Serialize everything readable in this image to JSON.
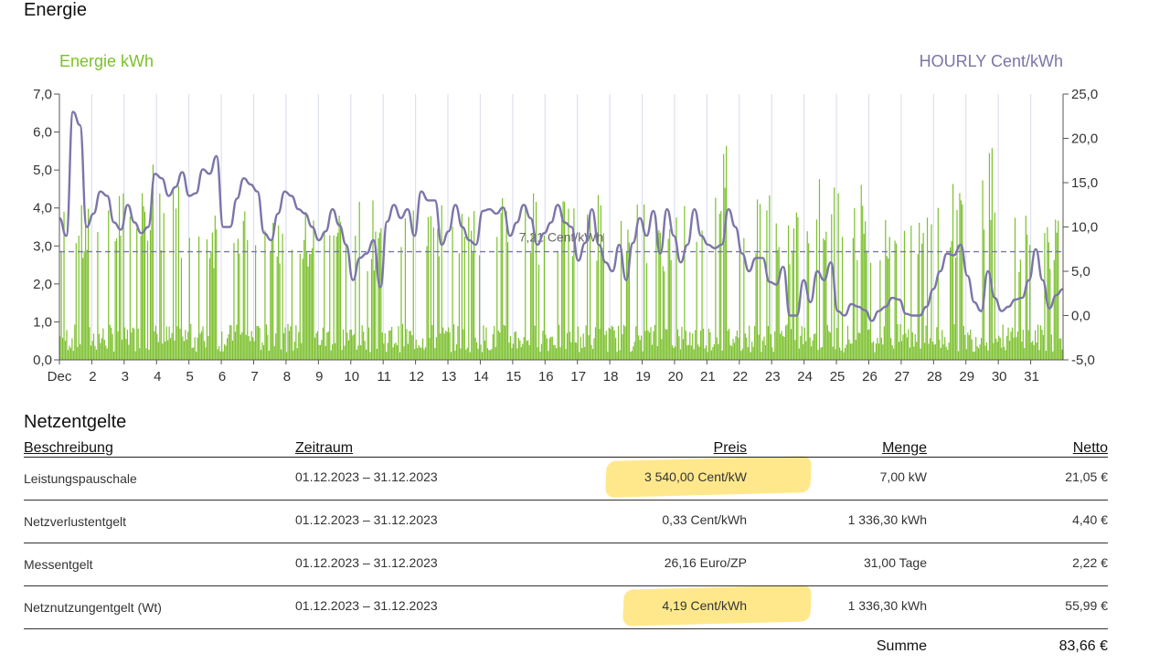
{
  "energy": {
    "title": "Energie",
    "left_legend": "Energie kWh",
    "right_legend": "HOURLY Cent/kWh",
    "average_label": "7,21 Cent/kWh"
  },
  "chart_data": {
    "type": "bar",
    "title": "Energie",
    "x_tick_labels": [
      "Dec",
      "2",
      "3",
      "4",
      "5",
      "6",
      "7",
      "8",
      "9",
      "10",
      "11",
      "12",
      "13",
      "14",
      "15",
      "16",
      "17",
      "18",
      "19",
      "20",
      "21",
      "22",
      "23",
      "24",
      "25",
      "26",
      "27",
      "28",
      "29",
      "30",
      "31"
    ],
    "y_left": {
      "label": "Energie kWh",
      "lim": [
        0,
        7
      ],
      "ticks": [
        "0,0",
        "1,0",
        "2,0",
        "3,0",
        "4,0",
        "5,0",
        "6,0",
        "7,0"
      ]
    },
    "y_right": {
      "label": "HOURLY Cent/kWh",
      "lim": [
        -5,
        25
      ],
      "ticks": [
        "-5,0",
        "0,0",
        "5,0",
        "10,0",
        "15,0",
        "20,0",
        "25,0"
      ]
    },
    "average": {
      "value": 7.21,
      "label": "7,21 Cent/kWh"
    },
    "series": [
      {
        "name": "Energie kWh",
        "type": "bar",
        "axis": "left",
        "color": "#7cc02d",
        "sampling": "hourly estimate",
        "daily_peak_kwh": [
          4.1,
          4.4,
          5.7,
          4.6,
          4.3,
          4.5,
          4.6,
          4.0,
          4.2,
          4.2,
          4.3,
          4.5,
          4.1,
          4.4,
          4.5,
          4.2,
          4.5,
          4.4,
          4.2,
          4.3,
          5.8,
          4.7,
          4.2,
          5.0,
          4.7,
          4.2,
          4.6,
          4.8,
          6.2,
          4.2,
          4.1
        ]
      },
      {
        "name": "HOURLY Cent/kWh",
        "type": "line",
        "axis": "right",
        "color": "#7b75a9",
        "sampling": "every 6h",
        "values": [
          11,
          9,
          23,
          21.5,
          10,
          11.5,
          14,
          13.5,
          10.5,
          9.7,
          12.5,
          10.5,
          9.3,
          10,
          16,
          15.5,
          13.5,
          14.5,
          16.2,
          13.5,
          13.8,
          16.5,
          16,
          18,
          10,
          10,
          13.2,
          15.5,
          14.8,
          14,
          9.3,
          8.5,
          11.5,
          14,
          13.5,
          12,
          11.5,
          10,
          8.5,
          9.5,
          12,
          10.2,
          8,
          4,
          6.5,
          7,
          8.5,
          3.2,
          10.6,
          12.5,
          11,
          12,
          9,
          14,
          13,
          13,
          8,
          9.5,
          12.5,
          10,
          8.5,
          8,
          11.8,
          12,
          11.5,
          12.2,
          9,
          10.5,
          12.5,
          11,
          8,
          9.3,
          10.5,
          12.5,
          10.5,
          10,
          6.2,
          8.2,
          12,
          8,
          6,
          5,
          8,
          4,
          8.2,
          11,
          9,
          11.8,
          7,
          12,
          9,
          6,
          8,
          12,
          9,
          8,
          7.6,
          8,
          12,
          10,
          7,
          5,
          6.5,
          6.5,
          3.8,
          3.5,
          5.5,
          0,
          0,
          4,
          1.5,
          5,
          4,
          6,
          0.5,
          0,
          1.3,
          1,
          0.6,
          -0.6,
          0.5,
          1,
          2,
          1.8,
          0.2,
          0,
          0,
          1,
          3,
          5,
          7,
          6.8,
          8,
          4.5,
          1.5,
          0.5,
          5,
          2,
          0.5,
          1,
          1.8,
          2,
          4,
          7.5,
          4,
          0.8,
          2.3,
          3
        ]
      }
    ],
    "grid": "vertical day separators",
    "legend": "top"
  },
  "fees": {
    "title": "Netzentgelte",
    "headers": [
      "Beschreibung",
      "Zeitraum",
      "Preis",
      "Menge",
      "Netto"
    ],
    "rows": [
      {
        "desc": "Leistungspauschale",
        "period": "01.12.2023 – 31.12.2023",
        "price": "3 540,00 Cent/kW",
        "qty": "7,00 kW",
        "net": "21,05 €",
        "highlight": true
      },
      {
        "desc": "Netzverlustentgelt",
        "period": "01.12.2023 – 31.12.2023",
        "price": "0,33 Cent/kWh",
        "qty": "1 336,30 kWh",
        "net": "4,40 €",
        "highlight": false
      },
      {
        "desc": "Messentgelt",
        "period": "01.12.2023 – 31.12.2023",
        "price": "26,16 Euro/ZP",
        "qty": "31,00 Tage",
        "net": "2,22 €",
        "highlight": false
      },
      {
        "desc": "Netznutzungentgelt (Wt)",
        "period": "01.12.2023 – 31.12.2023",
        "price": "4,19 Cent/kWh",
        "qty": "1 336,30 kWh",
        "net": "55,99 €",
        "highlight": true
      }
    ],
    "sum_label": "Summe",
    "sum_value": "83,66 €"
  }
}
